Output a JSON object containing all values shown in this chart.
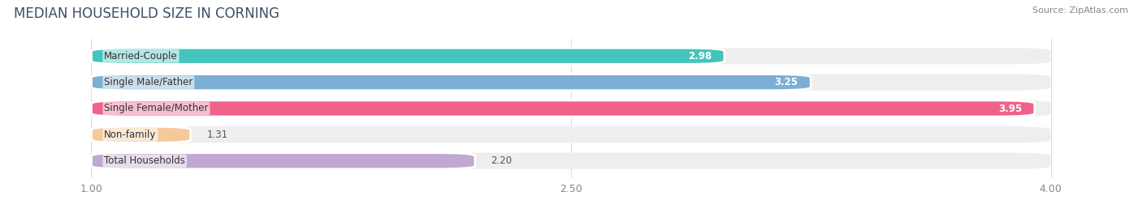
{
  "title": "MEDIAN HOUSEHOLD SIZE IN CORNING",
  "source": "Source: ZipAtlas.com",
  "categories": [
    "Married-Couple",
    "Single Male/Father",
    "Single Female/Mother",
    "Non-family",
    "Total Households"
  ],
  "values": [
    2.98,
    3.25,
    3.95,
    1.31,
    2.2
  ],
  "bar_colors": [
    "#45C4BC",
    "#7BAFD4",
    "#F0628A",
    "#F5C99A",
    "#C0A8D0"
  ],
  "value_inside": [
    true,
    true,
    true,
    false,
    false
  ],
  "xlim": [
    0.75,
    4.25
  ],
  "xstart": 1.0,
  "xticks": [
    1.0,
    2.5,
    4.0
  ],
  "xticklabels": [
    "1.00",
    "2.50",
    "4.00"
  ],
  "background_color": "#ffffff",
  "bar_bg_color": "#eeeeee",
  "title_fontsize": 12,
  "label_fontsize": 8.5,
  "value_fontsize": 8.5,
  "bar_height": 0.62,
  "bar_gap": 1.0
}
